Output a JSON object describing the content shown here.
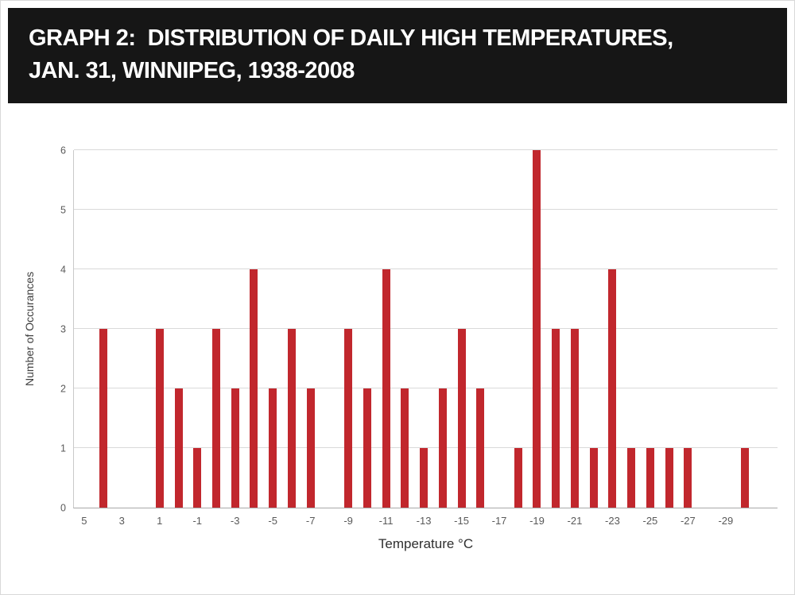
{
  "header": {
    "title_line1": "GRAPH 2:  DISTRIBUTION OF DAILY HIGH TEMPERATURES,",
    "title_line2": "JAN. 31, WINNIPEG, 1938-2008"
  },
  "chart_data": {
    "type": "bar",
    "title": "Distribution of daily high temperatures, Jan. 31, Winnipeg, 1938-2008",
    "xlabel": "Temperature °C",
    "ylabel": "Number of Occurances",
    "ylim": [
      0,
      6
    ],
    "yticks": [
      0,
      1,
      2,
      3,
      4,
      5,
      6
    ],
    "xtick_labels": [
      5,
      3,
      1,
      -1,
      -3,
      -5,
      -7,
      -9,
      -11,
      -13,
      -15,
      -17,
      -19,
      -21,
      -23,
      -25,
      -27,
      -29
    ],
    "bar_color": "#c1272d",
    "gridline_color": "#d9d9d9",
    "grid": true,
    "legend": false,
    "points": [
      {
        "x": 4,
        "y": 3
      },
      {
        "x": 1,
        "y": 3
      },
      {
        "x": 0,
        "y": 2
      },
      {
        "x": -1,
        "y": 1
      },
      {
        "x": -2,
        "y": 3
      },
      {
        "x": -3,
        "y": 2
      },
      {
        "x": -4,
        "y": 4
      },
      {
        "x": -5,
        "y": 2
      },
      {
        "x": -6,
        "y": 3
      },
      {
        "x": -7,
        "y": 2
      },
      {
        "x": -9,
        "y": 3
      },
      {
        "x": -10,
        "y": 2
      },
      {
        "x": -11,
        "y": 4
      },
      {
        "x": -12,
        "y": 2
      },
      {
        "x": -13,
        "y": 1
      },
      {
        "x": -14,
        "y": 2
      },
      {
        "x": -15,
        "y": 3
      },
      {
        "x": -16,
        "y": 2
      },
      {
        "x": -18,
        "y": 1
      },
      {
        "x": -19,
        "y": 6
      },
      {
        "x": -20,
        "y": 3
      },
      {
        "x": -21,
        "y": 3
      },
      {
        "x": -22,
        "y": 1
      },
      {
        "x": -23,
        "y": 4
      },
      {
        "x": -24,
        "y": 1
      },
      {
        "x": -25,
        "y": 1
      },
      {
        "x": -26,
        "y": 1
      },
      {
        "x": -27,
        "y": 1
      },
      {
        "x": -30,
        "y": 1
      }
    ]
  }
}
